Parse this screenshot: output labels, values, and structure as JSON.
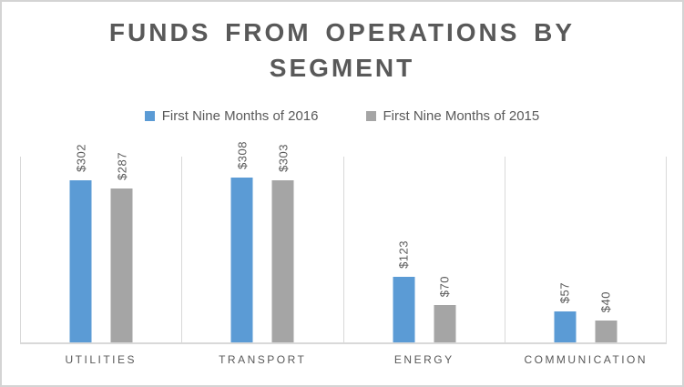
{
  "window": {
    "background": "#FFFFFF",
    "border_color": "#D4D4D4"
  },
  "title": {
    "line1": "FUNDS FROM OPERATIONS BY",
    "line2": "SEGMENT"
  },
  "legend": {
    "items": [
      {
        "label": "First Nine Months of 2016",
        "color": "#5B9BD5"
      },
      {
        "label": "First Nine Months of 2015",
        "color": "#A5A5A5"
      }
    ]
  },
  "chart_data": {
    "type": "bar",
    "title": "FUNDS FROM OPERATIONS BY SEGMENT",
    "categories": [
      "UTILITIES",
      "TRANSPORT",
      "ENERGY",
      "COMMUNICATION"
    ],
    "series": [
      {
        "name": "First Nine Months of 2016",
        "year": "2016",
        "color": "#5B9BD5",
        "values": [
          302,
          308,
          123,
          57
        ],
        "data_labels": [
          "$302",
          "$308",
          "$123",
          "$57"
        ]
      },
      {
        "name": "First Nine Months of 2015",
        "year": "2015",
        "color": "#A5A5A5",
        "values": [
          287,
          303,
          70,
          40
        ],
        "data_labels": [
          "$287",
          "$303",
          "$70",
          "$40"
        ]
      }
    ],
    "xlabel": "",
    "ylabel": "",
    "ylim": [
      0,
      350
    ],
    "y_axis_labels_visible": false,
    "legend_position": "top",
    "grid": "vertical-category-separators",
    "data_label_rotation": -90,
    "axis_color": "#D9D9D9",
    "text_color": "#595959",
    "title_color": "#595959"
  }
}
